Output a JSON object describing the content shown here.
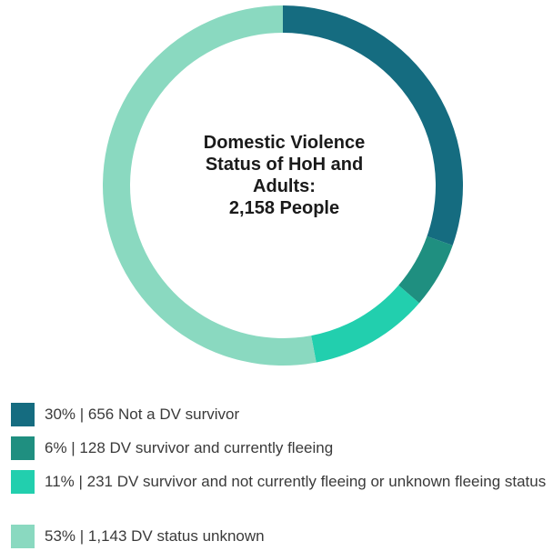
{
  "chart_data": {
    "type": "pie",
    "title": "Domestic Violence Status of HoH and Adults:",
    "title_lines": [
      "Domestic Violence",
      "Status of HoH and",
      "Adults:"
    ],
    "subtitle": "2,158 People",
    "total": 2158,
    "categories": [
      "Not a DV survivor",
      "DV survivor and currently fleeing",
      "DV survivor and not currently fleeing or unknown fleeing status",
      "DV status unknown"
    ],
    "values": [
      656,
      128,
      231,
      1143
    ],
    "percents": [
      30,
      6,
      11,
      53
    ],
    "colors": [
      "#156c80",
      "#1f8f80",
      "#22cfae",
      "#8ad9c0"
    ],
    "legend_placement": "bottom",
    "legend_labels": [
      "30% | 656 Not a DV survivor",
      "6% | 128 DV survivor and currently fleeing",
      "11% | 231 DV survivor and not currently fleeing or unknown fleeing status",
      "53% | 1,143 DV status unknown"
    ]
  }
}
